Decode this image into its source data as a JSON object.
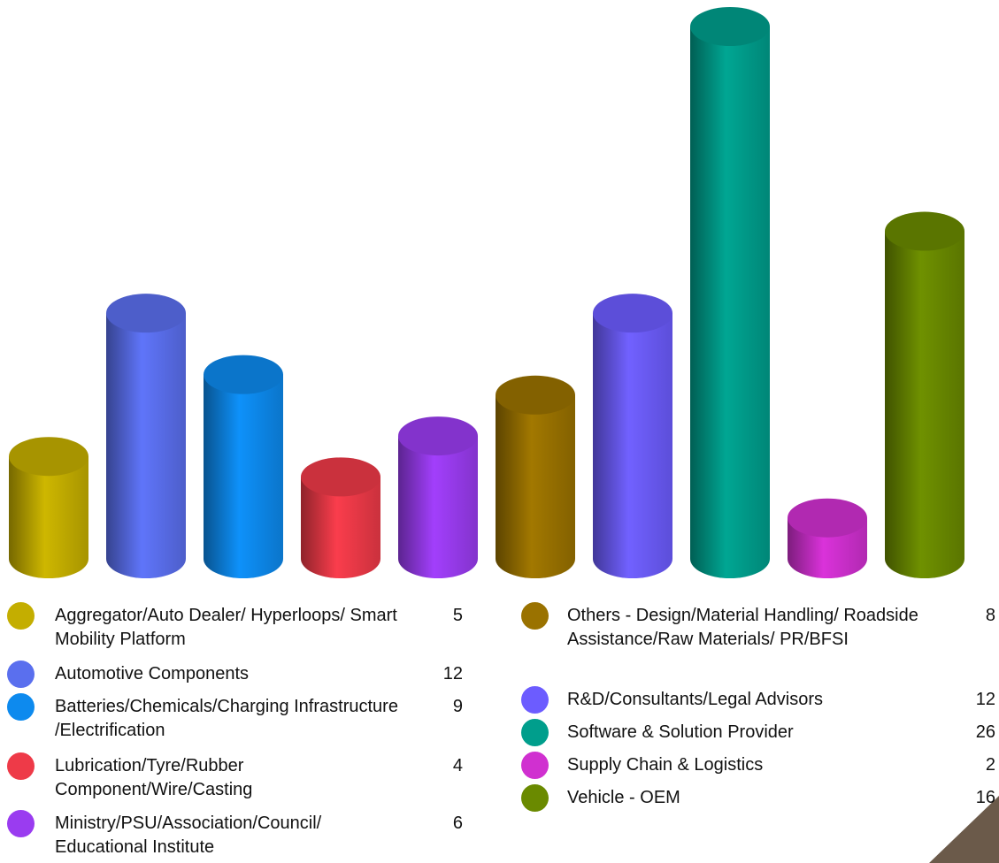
{
  "chart_data": {
    "type": "bar",
    "categories": [
      "Aggregator/Auto Dealer/ Hyperloops/ Smart Mobility Platform",
      "Automotive Components",
      "Batteries/Chemicals/Charging Infrastructure /Electrification",
      "Lubrication/Tyre/Rubber Component/Wire/Casting",
      "Ministry/PSU/Association/Council/ Educational Institute",
      "Others - Design/Material Handling/ Roadside Assistance/Raw Materials/ PR/BFSI",
      "R&D/Consultants/Legal Advisors",
      "Software & Solution Provider",
      "Supply Chain & Logistics",
      "Vehicle - OEM"
    ],
    "values": [
      5,
      12,
      9,
      4,
      6,
      8,
      12,
      26,
      2,
      16
    ],
    "colors": [
      "#c4ae00",
      "#5a6fee",
      "#0d8aee",
      "#ee3a48",
      "#9a3cf0",
      "#9a7200",
      "#6c5cff",
      "#009e8c",
      "#d030d0",
      "#6a8a00"
    ]
  }
}
